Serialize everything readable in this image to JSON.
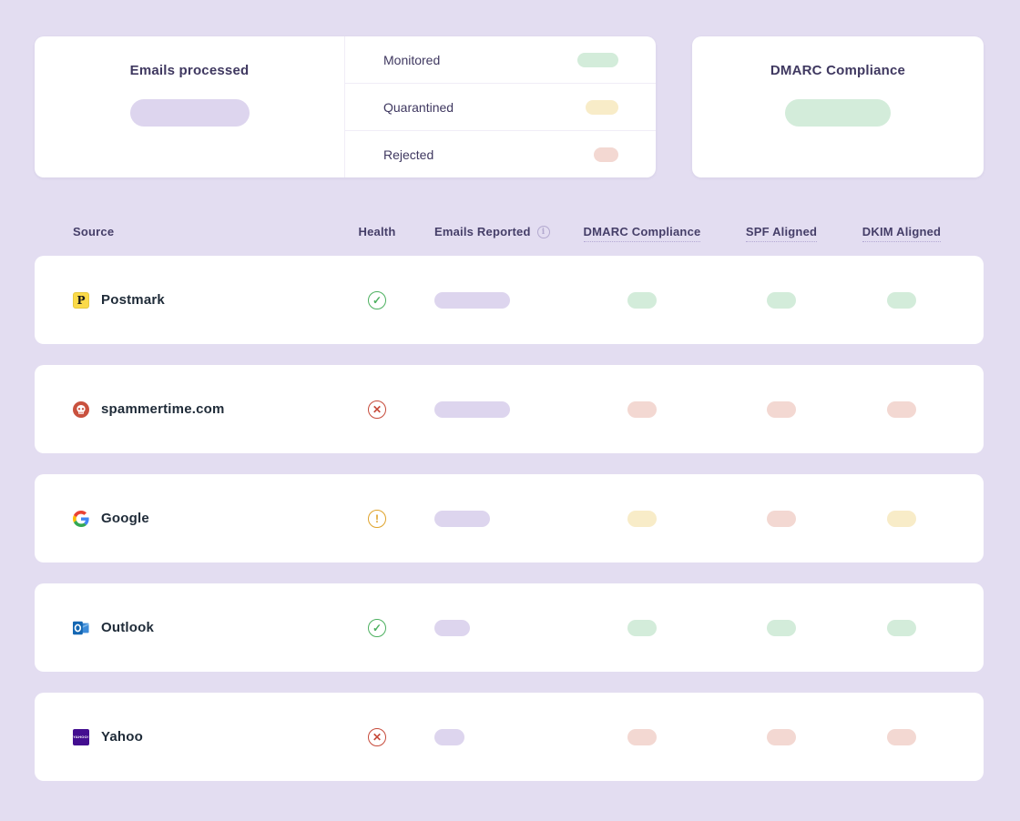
{
  "summary": {
    "emails_processed": {
      "title": "Emails processed",
      "value_status": "neutral"
    },
    "legend": [
      {
        "label": "Monitored",
        "status": "success",
        "pill_width": 45
      },
      {
        "label": "Quarantined",
        "status": "warning",
        "pill_width": 36
      },
      {
        "label": "Rejected",
        "status": "danger",
        "pill_width": 27
      }
    ],
    "dmarc_compliance": {
      "title": "DMARC Compliance",
      "value_status": "success"
    }
  },
  "table": {
    "columns": [
      {
        "label": "Source"
      },
      {
        "label": "Health"
      },
      {
        "label": "Emails Reported",
        "has_info_icon": true
      },
      {
        "label": "DMARC Compliance",
        "underlined": true
      },
      {
        "label": "SPF Aligned",
        "underlined": true
      },
      {
        "label": "DKIM Aligned",
        "underlined": true
      }
    ],
    "rows": [
      {
        "source": "Postmark",
        "icon": "postmark-logo",
        "health": "success",
        "emails_pill_width": 83,
        "dmarc": "success",
        "spf": "success",
        "dkim": "success"
      },
      {
        "source": "spammertime.com",
        "icon": "spam-skull",
        "health": "danger",
        "emails_pill_width": 83,
        "dmarc": "danger",
        "spf": "danger",
        "dkim": "danger"
      },
      {
        "source": "Google",
        "icon": "google-logo",
        "health": "warning",
        "emails_pill_width": 61,
        "dmarc": "warning",
        "spf": "danger",
        "dkim": "warning"
      },
      {
        "source": "Outlook",
        "icon": "outlook-logo",
        "health": "success",
        "emails_pill_width": 39,
        "dmarc": "success",
        "spf": "success",
        "dkim": "success"
      },
      {
        "source": "Yahoo",
        "icon": "yahoo-logo",
        "health": "danger",
        "emails_pill_width": 33,
        "dmarc": "danger",
        "spf": "danger",
        "dkim": "danger"
      }
    ]
  },
  "icons": {
    "postmark_glyph": "P",
    "yahoo_glyph": "YAHOO!",
    "info_glyph": "i"
  },
  "colors": {
    "page_bg": "#e3ddf1",
    "card_bg": "#ffffff",
    "heading_text": "#3f3860",
    "source_text": "#1f2b38",
    "pill_neutral": "#ddd5ee",
    "pill_success": "#d3ecda",
    "pill_warning": "#f8ecc8",
    "pill_danger": "#f3d8d2",
    "health_success": "#4cb05f",
    "health_danger": "#c64a3a",
    "health_warning": "#dfa32b"
  }
}
